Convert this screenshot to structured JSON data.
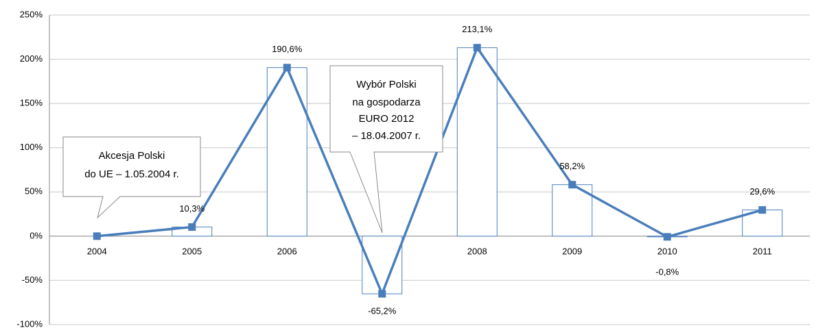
{
  "chart_data": {
    "type": "bar_line",
    "categories": [
      "2004",
      "2005",
      "2006",
      "2007",
      "2008",
      "2009",
      "2010",
      "2011"
    ],
    "values": [
      0,
      10.3,
      190.6,
      -65.2,
      213.1,
      58.2,
      -0.8,
      29.6
    ],
    "value_labels": [
      null,
      "10,3%",
      "190,6%",
      "-65,2%",
      "213,1%",
      "58,2%",
      "-0,8%",
      "29,6%"
    ],
    "color": "#4a7ebb",
    "ylim": [
      -100,
      250
    ],
    "yticks": [
      {
        "value": -100,
        "label": "-100%"
      },
      {
        "value": -50,
        "label": "-50%"
      },
      {
        "value": 0,
        "label": "0%"
      },
      {
        "value": 50,
        "label": "50%"
      },
      {
        "value": 100,
        "label": "100%"
      },
      {
        "value": 150,
        "label": "150%"
      },
      {
        "value": 200,
        "label": "200%"
      },
      {
        "value": 250,
        "label": "250%"
      }
    ],
    "grid": true,
    "annotations": [
      {
        "lines": [
          "Akcesja Polski",
          "do UE – 1.05.2004  r."
        ]
      },
      {
        "lines": [
          "Wybór Polski",
          "na gospodarza",
          "EURO 2012",
          "– 18.04.2007  r."
        ]
      }
    ]
  }
}
